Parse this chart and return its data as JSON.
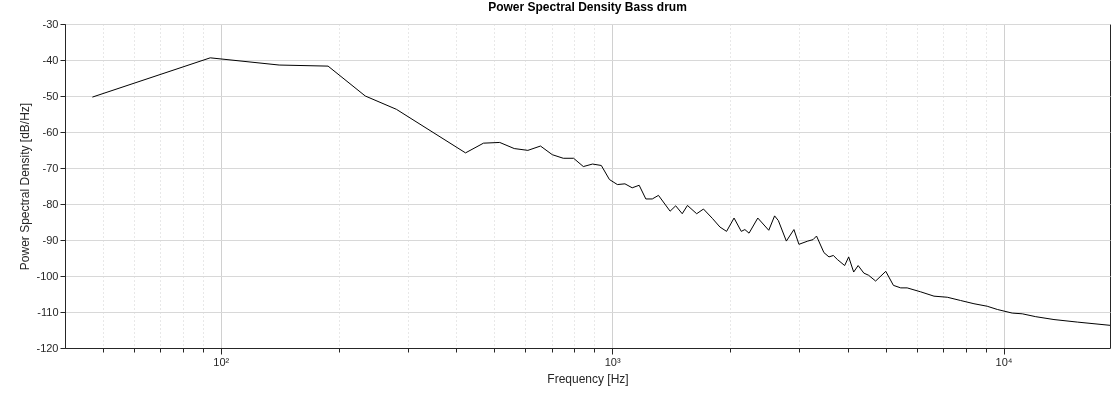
{
  "chart_data": {
    "type": "line",
    "title": "Power Spectral Density Bass drum",
    "xlabel": "Frequency [Hz]",
    "ylabel": "Power Spectral Density [dB/Hz]",
    "log": "x",
    "grid": true,
    "xlim": [
      40,
      18700
    ],
    "ylim": [
      -120,
      -30
    ],
    "xticks": [
      {
        "value": 50,
        "label": null
      },
      {
        "value": 60,
        "label": null
      },
      {
        "value": 70,
        "label": null
      },
      {
        "value": 80,
        "label": null
      },
      {
        "value": 90,
        "label": null
      },
      {
        "value": 100,
        "label": "10²"
      },
      {
        "value": 200,
        "label": null
      },
      {
        "value": 300,
        "label": null
      },
      {
        "value": 400,
        "label": null
      },
      {
        "value": 500,
        "label": null
      },
      {
        "value": 600,
        "label": null
      },
      {
        "value": 700,
        "label": null
      },
      {
        "value": 800,
        "label": null
      },
      {
        "value": 900,
        "label": null
      },
      {
        "value": 1000,
        "label": "10³"
      },
      {
        "value": 2000,
        "label": null
      },
      {
        "value": 3000,
        "label": null
      },
      {
        "value": 4000,
        "label": null
      },
      {
        "value": 5000,
        "label": null
      },
      {
        "value": 6000,
        "label": null
      },
      {
        "value": 7000,
        "label": null
      },
      {
        "value": 8000,
        "label": null
      },
      {
        "value": 9000,
        "label": null
      },
      {
        "value": 10000,
        "label": "10⁴"
      }
    ],
    "yticks": [
      -120,
      -110,
      -100,
      -90,
      -80,
      -70,
      -60,
      -50,
      -40,
      -30
    ],
    "x": [
      47,
      94,
      141,
      188,
      234,
      281,
      422,
      469,
      516,
      562,
      609,
      656,
      703,
      750,
      797,
      844,
      891,
      938,
      984,
      1031,
      1078,
      1125,
      1172,
      1219,
      1266,
      1313,
      1406,
      1453,
      1510,
      1557,
      1644,
      1711,
      1803,
      1885,
      1960,
      2048,
      2137,
      2183,
      2237,
      2355,
      2512,
      2600,
      2658,
      2786,
      2913,
      3000,
      3160,
      3260,
      3327,
      3475,
      3580,
      3673,
      3760,
      3926,
      4020,
      4140,
      4250,
      4395,
      4520,
      4710,
      5000,
      5230,
      5460,
      5670,
      6140,
      6640,
      7180,
      7760,
      8400,
      9080,
      9640,
      10520,
      11160,
      12080,
      13450,
      15430,
      18700
    ],
    "series": [
      {
        "color": "#000000",
        "values": [
          -50.3,
          -39.4,
          -41.4,
          -41.7,
          -50,
          -53.7,
          -65.8,
          -63.1,
          -62.9,
          -64.6,
          -65.1,
          -63.9,
          -66.3,
          -67.3,
          -67.3,
          -69.6,
          -68.9,
          -69.3,
          -73.2,
          -74.6,
          -74.4,
          -75.5,
          -74.8,
          -78.6,
          -78.6,
          -77.6,
          -82,
          -80.5,
          -82.7,
          -80.4,
          -82.7,
          -81.4,
          -84,
          -86.4,
          -87.6,
          -83.9,
          -87.6,
          -87.1,
          -88.1,
          -83.9,
          -87.3,
          -83.3,
          -84.6,
          -90.3,
          -87.1,
          -91.2,
          -90.3,
          -89.9,
          -88.9,
          -93.5,
          -94.7,
          -94.3,
          -95.4,
          -97.1,
          -94.7,
          -98.9,
          -97.1,
          -99.2,
          -99.8,
          -101.4,
          -98.7,
          -102.6,
          -103.3,
          -103.3,
          -104.4,
          -105.6,
          -105.9,
          -106.8,
          -107.7,
          -108.4,
          -109.3,
          -110.3,
          -110.5,
          -111.3,
          -112.1,
          -112.8,
          -113.7
        ]
      }
    ]
  }
}
